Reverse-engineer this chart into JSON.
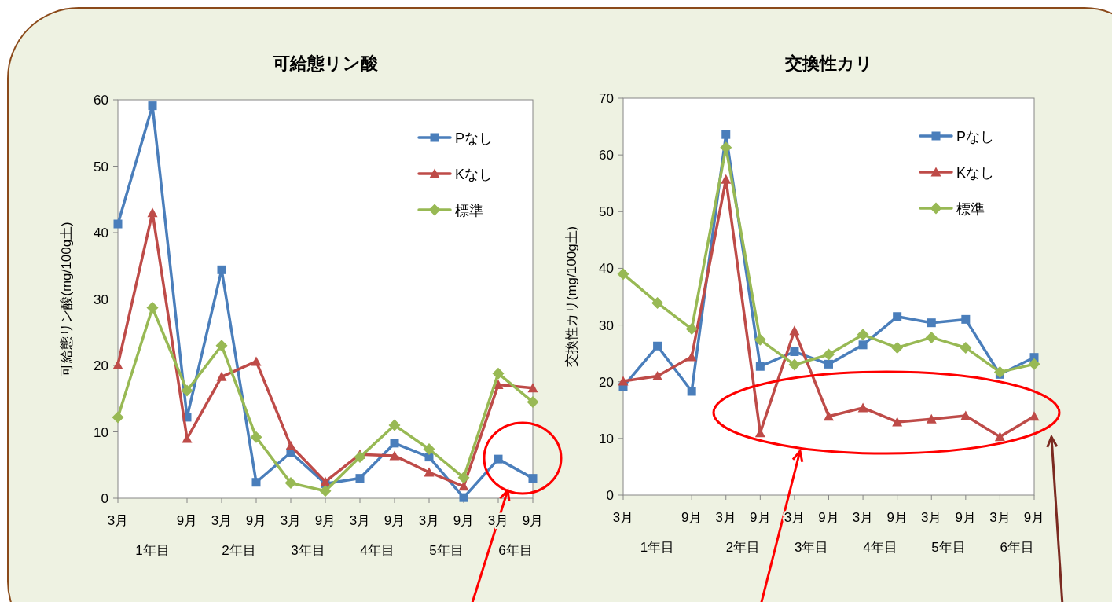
{
  "chart_data": [
    {
      "type": "line",
      "title": "可給態リン酸",
      "ylabel": "可給態リン酸(mg/100g土)",
      "ylim": [
        0,
        60
      ],
      "yticks": [
        0,
        10,
        20,
        30,
        40,
        50,
        60
      ],
      "categories": [
        "3月",
        null,
        "9月",
        "3月",
        "9月",
        "3月",
        "9月",
        "3月",
        "9月",
        "3月",
        "9月",
        "3月",
        "9月"
      ],
      "annotations": [
        "1年目",
        "2年目",
        "3年目",
        "4年目",
        "5年目",
        "6年目"
      ],
      "legend": "top right",
      "series": [
        {
          "name": "Pなし",
          "color": "#4a7ebb",
          "marker": "square",
          "values": [
            41.3,
            59.1,
            12.2,
            34.4,
            2.4,
            6.9,
            2.2,
            3.0,
            8.3,
            6.2,
            0.1,
            5.9,
            3.0
          ]
        },
        {
          "name": "Kなし",
          "color": "#be4b48",
          "marker": "triangle",
          "values": [
            20.1,
            43.0,
            9.0,
            18.3,
            20.6,
            7.9,
            2.5,
            6.6,
            6.4,
            3.9,
            1.8,
            17.1,
            16.6
          ]
        },
        {
          "name": "標準",
          "color": "#98b954",
          "marker": "diamond",
          "values": [
            12.2,
            28.7,
            16.2,
            23.0,
            9.2,
            2.3,
            1.1,
            6.2,
            11.0,
            7.4,
            3.1,
            18.8,
            14.5
          ]
        }
      ]
    },
    {
      "type": "line",
      "title": "交換性カリ",
      "ylabel": "交換性カリ(mg/100g土)",
      "ylim": [
        0,
        70
      ],
      "yticks": [
        0,
        10,
        20,
        30,
        40,
        50,
        60,
        70
      ],
      "categories": [
        "3月",
        null,
        "9月",
        "3月",
        "9月",
        "3月",
        "9月",
        "3月",
        "9月",
        "3月",
        "9月",
        "3月",
        "9月"
      ],
      "annotations": [
        "1年目",
        "2年目",
        "3年目",
        "4年目",
        "5年目",
        "6年目"
      ],
      "legend": "top right",
      "series": [
        {
          "name": "Pなし",
          "color": "#4a7ebb",
          "marker": "square",
          "values": [
            19.1,
            26.3,
            18.3,
            63.6,
            22.7,
            25.3,
            23.1,
            26.5,
            31.5,
            30.4,
            31.0,
            21.3,
            24.3
          ]
        },
        {
          "name": "Kなし",
          "color": "#be4b48",
          "marker": "triangle",
          "values": [
            20.1,
            21.0,
            24.4,
            55.7,
            11.0,
            29.0,
            13.9,
            15.4,
            12.9,
            13.4,
            14.0,
            10.3,
            13.9
          ]
        },
        {
          "name": "標準",
          "color": "#98b954",
          "marker": "diamond",
          "values": [
            39.0,
            33.9,
            29.3,
            61.3,
            27.4,
            23.0,
            24.8,
            28.3,
            26.0,
            27.8,
            26.0,
            21.7,
            23.1
          ]
        }
      ]
    }
  ]
}
